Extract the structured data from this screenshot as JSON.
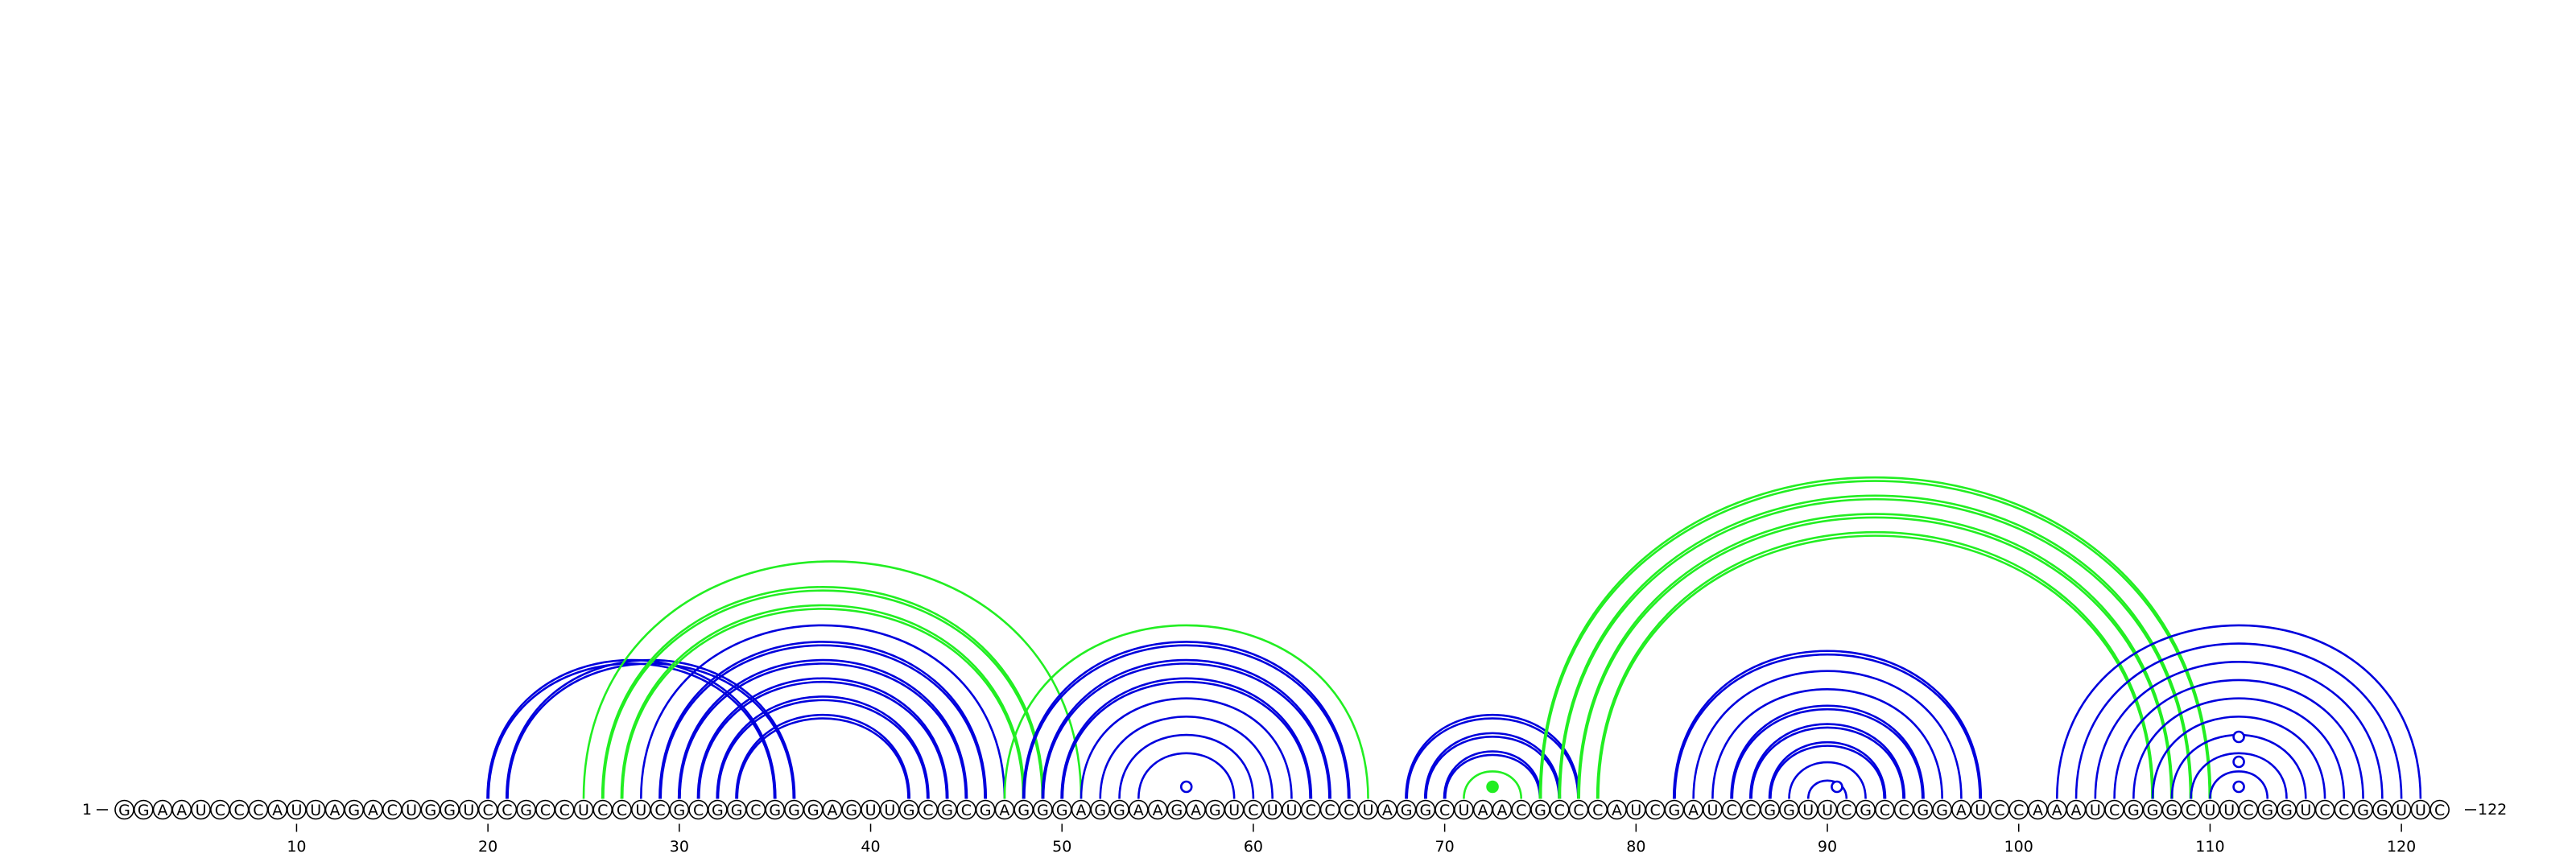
{
  "sequence": "GGAAUCCCAUUAGACUGGUCCGCCUCCUCGCGGCGGGAGUUGCGCGAGGGAGGAAGAGUCUUCCCUAGGCUAACGCCCAUCGAUCCGGUUCGCCGGAUCCAAAUCGGGCUUCGGUCCGGUUC",
  "start_label": "1",
  "end_label": "122",
  "ticks": [
    {
      "pos": 10,
      "label": "10"
    },
    {
      "pos": 20,
      "label": "20"
    },
    {
      "pos": 30,
      "label": "30"
    },
    {
      "pos": 40,
      "label": "40"
    },
    {
      "pos": 50,
      "label": "50"
    },
    {
      "pos": 60,
      "label": "60"
    },
    {
      "pos": 70,
      "label": "70"
    },
    {
      "pos": 80,
      "label": "80"
    },
    {
      "pos": 90,
      "label": "90"
    },
    {
      "pos": 100,
      "label": "100"
    },
    {
      "pos": 110,
      "label": "110"
    },
    {
      "pos": 120,
      "label": "120"
    }
  ],
  "colors": {
    "blue": "#0000dd",
    "green": "#22ee22"
  },
  "arcs": [
    {
      "i": 20,
      "j": 35,
      "color": "blue",
      "double": true
    },
    {
      "i": 21,
      "j": 36,
      "color": "blue",
      "double": true
    },
    {
      "i": 25,
      "j": 51,
      "color": "green",
      "double": false
    },
    {
      "i": 26,
      "j": 49,
      "color": "green",
      "double": true
    },
    {
      "i": 27,
      "j": 48,
      "color": "green",
      "double": true
    },
    {
      "i": 28,
      "j": 47,
      "color": "blue",
      "double": false
    },
    {
      "i": 29,
      "j": 46,
      "color": "blue",
      "double": true
    },
    {
      "i": 30,
      "j": 45,
      "color": "blue",
      "double": true
    },
    {
      "i": 31,
      "j": 44,
      "color": "blue",
      "double": true
    },
    {
      "i": 32,
      "j": 43,
      "color": "blue",
      "double": true
    },
    {
      "i": 33,
      "j": 42,
      "color": "blue",
      "double": true
    },
    {
      "i": 47,
      "j": 66,
      "color": "green",
      "double": false
    },
    {
      "i": 48,
      "j": 65,
      "color": "blue",
      "double": true
    },
    {
      "i": 49,
      "j": 64,
      "color": "blue",
      "double": true
    },
    {
      "i": 50,
      "j": 63,
      "color": "blue",
      "double": true
    },
    {
      "i": 51,
      "j": 62,
      "color": "blue",
      "double": false
    },
    {
      "i": 52,
      "j": 61,
      "color": "blue",
      "double": false
    },
    {
      "i": 53,
      "j": 60,
      "color": "blue",
      "double": false
    },
    {
      "i": 54,
      "j": 59,
      "color": "blue",
      "double": false
    },
    {
      "i": 68,
      "j": 77,
      "color": "blue",
      "double": true
    },
    {
      "i": 69,
      "j": 76,
      "color": "blue",
      "double": true
    },
    {
      "i": 70,
      "j": 75,
      "color": "blue",
      "double": true
    },
    {
      "i": 71,
      "j": 74,
      "color": "green",
      "double": false
    },
    {
      "i": 75,
      "j": 110,
      "color": "green",
      "double": true
    },
    {
      "i": 76,
      "j": 109,
      "color": "green",
      "double": true
    },
    {
      "i": 77,
      "j": 108,
      "color": "green",
      "double": true
    },
    {
      "i": 78,
      "j": 107,
      "color": "green",
      "double": true
    },
    {
      "i": 82,
      "j": 98,
      "color": "blue",
      "double": true
    },
    {
      "i": 83,
      "j": 97,
      "color": "blue",
      "double": false
    },
    {
      "i": 84,
      "j": 96,
      "color": "blue",
      "double": false
    },
    {
      "i": 85,
      "j": 95,
      "color": "blue",
      "double": true
    },
    {
      "i": 86,
      "j": 94,
      "color": "blue",
      "double": true
    },
    {
      "i": 87,
      "j": 93,
      "color": "blue",
      "double": true
    },
    {
      "i": 88,
      "j": 92,
      "color": "blue",
      "double": false
    },
    {
      "i": 89,
      "j": 91,
      "color": "blue",
      "double": false
    },
    {
      "i": 102,
      "j": 121,
      "color": "blue",
      "double": false
    },
    {
      "i": 103,
      "j": 120,
      "color": "blue",
      "double": false
    },
    {
      "i": 104,
      "j": 119,
      "color": "blue",
      "double": false
    },
    {
      "i": 105,
      "j": 118,
      "color": "blue",
      "double": false
    },
    {
      "i": 106,
      "j": 117,
      "color": "blue",
      "double": false
    },
    {
      "i": 107,
      "j": 116,
      "color": "blue",
      "double": false
    },
    {
      "i": 108,
      "j": 115,
      "color": "blue",
      "double": false
    },
    {
      "i": 109,
      "j": 114,
      "color": "blue",
      "double": false
    },
    {
      "i": 110,
      "j": 113,
      "color": "blue",
      "double": false
    }
  ],
  "markers": [
    {
      "i": 56,
      "j": 57,
      "color": "blue",
      "filled": false
    },
    {
      "i": 72,
      "j": 73,
      "color": "green",
      "filled": true
    },
    {
      "i": 90,
      "j": 91,
      "color": "blue",
      "filled": false
    },
    {
      "i": 111,
      "j": 112,
      "color": "blue",
      "filled": false,
      "level": 0
    },
    {
      "i": 111,
      "j": 112,
      "color": "blue",
      "filled": false,
      "level": 1
    },
    {
      "i": 111,
      "j": 112,
      "color": "blue",
      "filled": false,
      "level": 2
    }
  ]
}
